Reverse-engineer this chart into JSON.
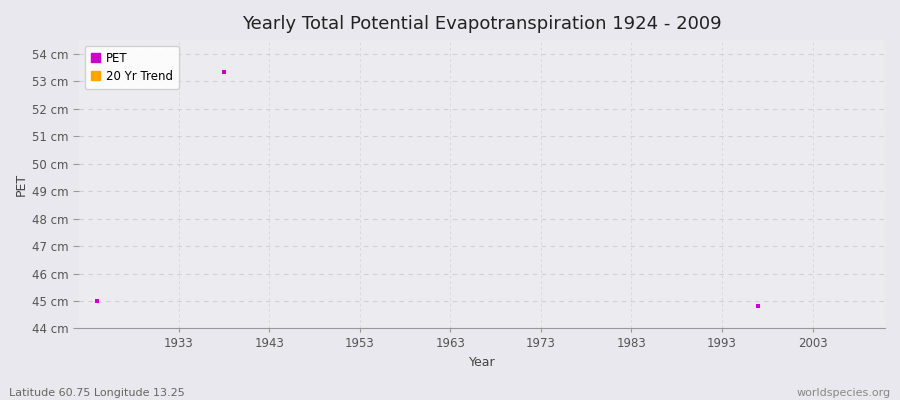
{
  "title": "Yearly Total Potential Evapotranspiration 1924 - 2009",
  "xlabel": "Year",
  "ylabel": "PET",
  "outer_bg_color": "#e8e8ee",
  "plot_bg_color": "#ebebf0",
  "grid_color": "#d0d0d8",
  "xlim": [
    1922,
    2011
  ],
  "ylim": [
    44,
    54.5
  ],
  "yticks": [
    44,
    45,
    46,
    47,
    48,
    49,
    50,
    51,
    52,
    53,
    54
  ],
  "ytick_labels": [
    "44 cm",
    "45 cm",
    "46 cm",
    "47 cm",
    "48 cm",
    "49 cm",
    "50 cm",
    "51 cm",
    "52 cm",
    "53 cm",
    "54 cm"
  ],
  "xticks": [
    1933,
    1943,
    1953,
    1963,
    1973,
    1983,
    1993,
    2003
  ],
  "pet_color": "#cc00cc",
  "trend_color": "#ffa500",
  "pet_points": [
    [
      1924,
      45.0
    ],
    [
      1938,
      53.35
    ],
    [
      1997,
      44.8
    ]
  ],
  "trend_points": [],
  "legend_labels": [
    "PET",
    "20 Yr Trend"
  ],
  "footer_left": "Latitude 60.75 Longitude 13.25",
  "footer_right": "worldspecies.org",
  "title_fontsize": 13,
  "axis_label_fontsize": 9,
  "tick_fontsize": 8.5,
  "footer_fontsize": 8
}
